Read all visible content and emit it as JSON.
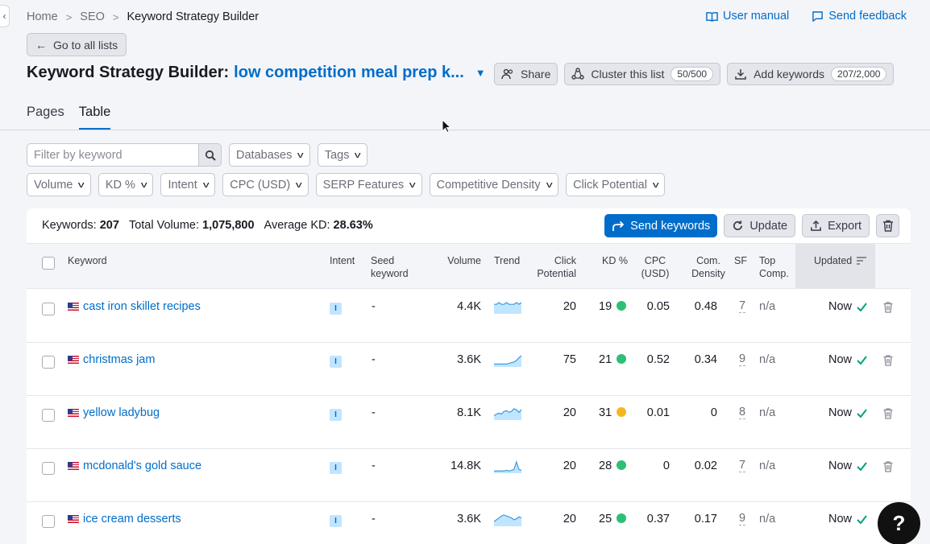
{
  "breadcrumb": {
    "home": "Home",
    "seo": "SEO",
    "current": "Keyword Strategy Builder"
  },
  "toplinks": {
    "manual": "User manual",
    "feedback": "Send feedback"
  },
  "back_label": "Go to all lists",
  "title": {
    "prefix": "Keyword Strategy Builder:",
    "list_name": "low competition meal prep k..."
  },
  "actions": {
    "share": "Share",
    "cluster": "Cluster this list",
    "cluster_count": "50/500",
    "add": "Add keywords",
    "add_count": "207/2,000"
  },
  "tabs": [
    "Pages",
    "Table"
  ],
  "filters": {
    "search_placeholder": "Filter by keyword",
    "row1": [
      "Databases",
      "Tags"
    ],
    "row2": [
      "Volume",
      "KD %",
      "Intent",
      "CPC (USD)",
      "SERP Features",
      "Competitive Density",
      "Click Potential"
    ]
  },
  "summary": {
    "keywords_label": "Keywords:",
    "keywords": "207",
    "volume_label": "Total Volume:",
    "volume": "1,075,800",
    "kd_label": "Average KD:",
    "kd": "28.63%"
  },
  "table_buttons": {
    "send": "Send keywords",
    "update": "Update",
    "export": "Export"
  },
  "columns": {
    "keyword": "Keyword",
    "intent": "Intent",
    "seed1": "Seed",
    "seed2": "keyword",
    "volume": "Volume",
    "trend": "Trend",
    "click1": "Click",
    "click2": "Potential",
    "kd": "KD %",
    "cpc1": "CPC",
    "cpc2": "(USD)",
    "com1": "Com.",
    "com2": "Density",
    "sf": "SF",
    "top1": "Top",
    "top2": "Comp.",
    "updated": "Updated"
  },
  "colors": {
    "accent": "#006dca",
    "kd_green": "#2dbf75",
    "kd_yellow": "#f5b623",
    "check": "#009f81"
  },
  "rows": [
    {
      "keyword": "cast iron skillet recipes",
      "intent": "I",
      "seed": "-",
      "volume": "4.4K",
      "trend": [
        5,
        5,
        6,
        5,
        5,
        6,
        5,
        5,
        5,
        6,
        5,
        6
      ],
      "click": "20",
      "kd": "19",
      "kd_color": "#2dbf75",
      "cpc": "0.05",
      "com": "0.48",
      "sf": "7",
      "top": "n/a",
      "updated": "Now"
    },
    {
      "keyword": "christmas jam",
      "intent": "I",
      "seed": "-",
      "volume": "3.6K",
      "trend": [
        3,
        3,
        3,
        3,
        3,
        3,
        4,
        5,
        6,
        8,
        12,
        15
      ],
      "click": "75",
      "kd": "21",
      "kd_color": "#2dbf75",
      "cpc": "0.52",
      "com": "0.34",
      "sf": "9",
      "top": "n/a",
      "updated": "Now"
    },
    {
      "keyword": "yellow ladybug",
      "intent": "I",
      "seed": "-",
      "volume": "8.1K",
      "trend": [
        4,
        6,
        7,
        6,
        9,
        10,
        8,
        9,
        12,
        11,
        8,
        11
      ],
      "click": "20",
      "kd": "31",
      "kd_color": "#f5b623",
      "cpc": "0.01",
      "com": "0",
      "sf": "8",
      "top": "n/a",
      "updated": "Now"
    },
    {
      "keyword": "mcdonald's gold sauce",
      "intent": "I",
      "seed": "-",
      "volume": "14.8K",
      "trend": [
        2,
        2,
        2,
        2,
        2,
        3,
        2,
        3,
        4,
        15,
        4,
        3
      ],
      "click": "20",
      "kd": "28",
      "kd_color": "#2dbf75",
      "cpc": "0",
      "com": "0.02",
      "sf": "7",
      "top": "n/a",
      "updated": "Now"
    },
    {
      "keyword": "ice cream desserts",
      "intent": "I",
      "seed": "-",
      "volume": "3.6K",
      "trend": [
        4,
        6,
        8,
        10,
        11,
        10,
        9,
        8,
        6,
        7,
        9,
        8
      ],
      "click": "20",
      "kd": "25",
      "kd_color": "#2dbf75",
      "cpc": "0.37",
      "com": "0.17",
      "sf": "9",
      "top": "n/a",
      "updated": "Now"
    }
  ],
  "help_label": "?"
}
